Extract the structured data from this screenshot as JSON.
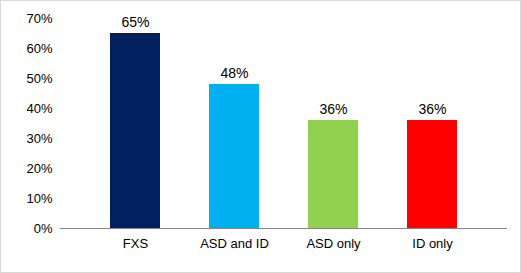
{
  "chart_data": {
    "type": "bar",
    "categories": [
      "FXS",
      "ASD and ID",
      "ASD only",
      "ID only"
    ],
    "values": [
      65,
      48,
      36,
      36
    ],
    "value_labels": [
      "65%",
      "48%",
      "36%",
      "36%"
    ],
    "colors": [
      "#002060",
      "#00B0F0",
      "#92D050",
      "#FF0000"
    ],
    "ylim": [
      0,
      70
    ],
    "yticks": [
      {
        "value": 0,
        "label": "0%"
      },
      {
        "value": 10,
        "label": "10%"
      },
      {
        "value": 20,
        "label": "20%"
      },
      {
        "value": 30,
        "label": "30%"
      },
      {
        "value": 40,
        "label": "40%"
      },
      {
        "value": 50,
        "label": "50%"
      },
      {
        "value": 60,
        "label": "60%"
      },
      {
        "value": 70,
        "label": "70%"
      }
    ],
    "grid": false,
    "data_labels": true
  }
}
